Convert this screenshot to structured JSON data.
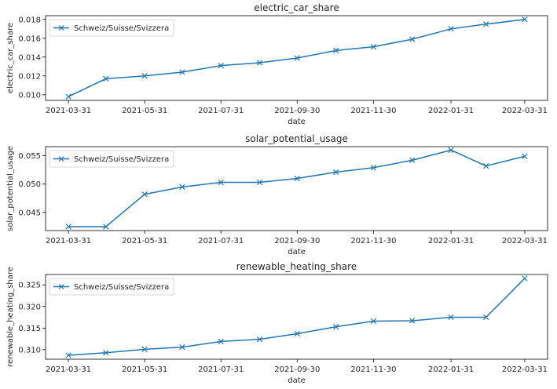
{
  "chart_data": [
    {
      "type": "line",
      "title": "electric_car_share",
      "xlabel": "date",
      "ylabel": "electric_car_share",
      "x": [
        "2021-03-31",
        "2021-04-30",
        "2021-05-31",
        "2021-06-30",
        "2021-07-31",
        "2021-08-31",
        "2021-09-30",
        "2021-10-31",
        "2021-11-30",
        "2021-12-31",
        "2022-01-31",
        "2022-02-28",
        "2022-03-31"
      ],
      "x_tick_labels": [
        "2021-03-31",
        "2021-05-31",
        "2021-07-31",
        "2021-09-30",
        "2021-11-30",
        "2022-01-31",
        "2022-03-31"
      ],
      "y_ticks": [
        "0.010",
        "0.012",
        "0.014",
        "0.016",
        "0.018"
      ],
      "ylim": [
        0.0094,
        0.0184
      ],
      "series": [
        {
          "name": "Schweiz/Suisse/Svizzera",
          "values": [
            0.0098,
            0.0117,
            0.012,
            0.0124,
            0.0131,
            0.0134,
            0.0139,
            0.0147,
            0.0151,
            0.0159,
            0.017,
            0.0175,
            0.018
          ]
        }
      ],
      "legend": "top-left",
      "grid": false,
      "color": "#1f77b4",
      "marker": "x"
    },
    {
      "type": "line",
      "title": "solar_potential_usage",
      "xlabel": "date",
      "ylabel": "solar_potential_usage",
      "x": [
        "2021-03-31",
        "2021-04-30",
        "2021-05-31",
        "2021-06-30",
        "2021-07-31",
        "2021-08-31",
        "2021-09-30",
        "2021-10-31",
        "2021-11-30",
        "2021-12-31",
        "2022-01-31",
        "2022-02-28",
        "2022-03-31"
      ],
      "x_tick_labels": [
        "2021-03-31",
        "2021-05-31",
        "2021-07-31",
        "2021-09-30",
        "2021-11-30",
        "2022-01-31",
        "2022-03-31"
      ],
      "y_ticks": [
        "0.045",
        "0.050",
        "0.055"
      ],
      "ylim": [
        0.0418,
        0.0566
      ],
      "series": [
        {
          "name": "Schweiz/Suisse/Svizzera",
          "values": [
            0.0425,
            0.0425,
            0.0482,
            0.0495,
            0.0503,
            0.0503,
            0.051,
            0.0521,
            0.0529,
            0.0542,
            0.056,
            0.0532,
            0.0549
          ]
        }
      ],
      "legend": "top-left",
      "grid": false,
      "color": "#1f77b4",
      "marker": "x"
    },
    {
      "type": "line",
      "title": "renewable_heating_share",
      "xlabel": "date",
      "ylabel": "renewable_heating_share",
      "x": [
        "2021-03-31",
        "2021-04-30",
        "2021-05-31",
        "2021-06-30",
        "2021-07-31",
        "2021-08-31",
        "2021-09-30",
        "2021-10-31",
        "2021-11-30",
        "2021-12-31",
        "2022-01-31",
        "2022-02-28",
        "2022-03-31"
      ],
      "x_tick_labels": [
        "2021-03-31",
        "2021-05-31",
        "2021-07-31",
        "2021-09-30",
        "2021-11-30",
        "2022-01-31",
        "2022-03-31"
      ],
      "y_ticks": [
        "0.310",
        "0.315",
        "0.320",
        "0.325"
      ],
      "ylim": [
        0.3078,
        0.3274
      ],
      "series": [
        {
          "name": "Schweiz/Suisse/Svizzera",
          "values": [
            0.3087,
            0.3093,
            0.3101,
            0.3106,
            0.3119,
            0.3124,
            0.3137,
            0.3153,
            0.3166,
            0.3167,
            0.3175,
            0.3175,
            0.3265
          ]
        }
      ],
      "legend": "top-left",
      "grid": false,
      "color": "#1f77b4",
      "marker": "x"
    }
  ]
}
